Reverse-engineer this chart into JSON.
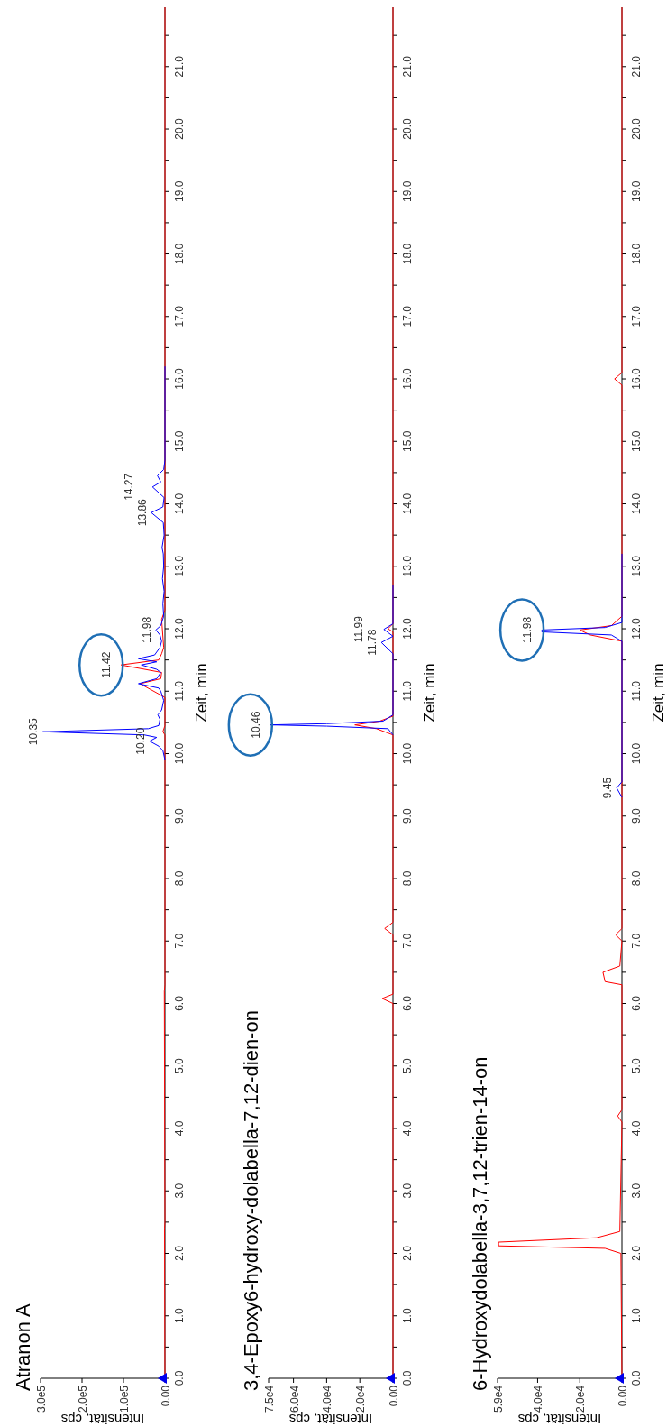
{
  "chart_data": [
    {
      "type": "line",
      "title": "Atranon A",
      "xlabel": "Intensität, cps",
      "ylabel": "Zeit, min",
      "xlim": [
        300000,
        0
      ],
      "ylim": [
        0,
        21.95
      ],
      "yticks": [
        {
          "value": 0,
          "label": "0.0"
        },
        {
          "value": 0.5,
          "label": null
        },
        {
          "value": 1,
          "label": "1.0"
        },
        {
          "value": 1.5,
          "label": null
        },
        {
          "value": 2,
          "label": "2.0"
        },
        {
          "value": 2.5,
          "label": null
        },
        {
          "value": 3,
          "label": "3.0"
        },
        {
          "value": 3.5,
          "label": null
        },
        {
          "value": 4,
          "label": "4.0"
        },
        {
          "value": 4.5,
          "label": null
        },
        {
          "value": 5,
          "label": "5.0"
        },
        {
          "value": 5.5,
          "label": null
        },
        {
          "value": 6,
          "label": "6.0"
        },
        {
          "value": 6.5,
          "label": null
        },
        {
          "value": 7,
          "label": "7.0"
        },
        {
          "value": 7.5,
          "label": null
        },
        {
          "value": 8,
          "label": "8.0"
        },
        {
          "value": 8.5,
          "label": null
        },
        {
          "value": 9,
          "label": "9.0"
        },
        {
          "value": 9.5,
          "label": null
        },
        {
          "value": 10,
          "label": "10.0"
        },
        {
          "value": 10.5,
          "label": null
        },
        {
          "value": 11,
          "label": "11.0"
        },
        {
          "value": 11.5,
          "label": null
        },
        {
          "value": 12,
          "label": "12.0"
        },
        {
          "value": 12.5,
          "label": null
        },
        {
          "value": 13,
          "label": "13.0"
        },
        {
          "value": 13.5,
          "label": null
        },
        {
          "value": 14,
          "label": "14.0"
        },
        {
          "value": 14.5,
          "label": null
        },
        {
          "value": 15,
          "label": "15.0"
        },
        {
          "value": 15.5,
          "label": null
        },
        {
          "value": 16,
          "label": "16.0"
        },
        {
          "value": 16.5,
          "label": null
        },
        {
          "value": 17,
          "label": "17.0"
        },
        {
          "value": 17.5,
          "label": null
        },
        {
          "value": 18,
          "label": "18.0"
        },
        {
          "value": 18.5,
          "label": null
        },
        {
          "value": 19,
          "label": "19.0"
        },
        {
          "value": 19.5,
          "label": null
        },
        {
          "value": 20,
          "label": "20.0"
        },
        {
          "value": 20.5,
          "label": null
        },
        {
          "value": 21,
          "label": "21.0"
        },
        {
          "value": 21.5,
          "label": null
        }
      ],
      "xticks": [
        {
          "value": 300000,
          "label": "3.0e5"
        },
        {
          "value": 200000,
          "label": "2.0e5"
        },
        {
          "value": 100000,
          "label": "1.0e5"
        },
        {
          "value": 0,
          "label": "0.00"
        }
      ],
      "series": [
        {
          "color": "#ff0000",
          "values": [
            0,
            2.4,
            2.5,
            6.2,
            6.3,
            10.3,
            10.35,
            10.45,
            10.9,
            11.12,
            11.2,
            11.3,
            11.42,
            11.5,
            11.6,
            11.7,
            12.15,
            12.3,
            21.95
          ],
          "x": [
            0,
            1000,
            0,
            1500,
            0,
            0,
            5000,
            0,
            0,
            60000,
            10000,
            8000,
            106000,
            15000,
            8000,
            3000,
            8000,
            0,
            0
          ]
        },
        {
          "color": "#0000ff",
          "values": [
            9.9,
            10.05,
            10.12,
            10.2,
            10.26,
            10.3,
            10.35,
            10.4,
            10.45,
            10.55,
            10.62,
            10.7,
            10.85,
            11,
            11.05,
            11.12,
            11.2,
            11.3,
            11.35,
            11.42,
            11.47,
            11.52,
            11.58,
            11.7,
            11.8,
            11.9,
            11.98,
            12.05,
            12.2,
            12.4,
            12.6,
            12.8,
            13,
            13.2,
            13.3,
            13.5,
            13.7,
            13.86,
            13.95,
            14.1,
            14.27,
            14.35,
            14.45,
            14.55,
            14.7,
            16.2
          ],
          "x": [
            0,
            5000,
            15000,
            37000,
            20000,
            50000,
            295000,
            40000,
            15000,
            12000,
            17000,
            8000,
            3000,
            10000,
            15000,
            64000,
            20000,
            10000,
            20000,
            57000,
            20000,
            64000,
            25000,
            12000,
            8000,
            12000,
            22000,
            10000,
            3000,
            5000,
            2000,
            6000,
            3000,
            4000,
            7000,
            2000,
            4000,
            33000,
            5000,
            2000,
            30000,
            10000,
            18000,
            3000,
            0,
            0
          ]
        }
      ],
      "annotations": [
        {
          "text": "11.42",
          "y": 11.42,
          "x": 106000
        },
        {
          "text": "10.35",
          "y": 10.35,
          "x": 295000
        },
        {
          "text": "10.20",
          "y": 10.2,
          "x": 37000
        },
        {
          "text": "11.98",
          "y": 11.98,
          "x": 22000
        },
        {
          "text": "13.86",
          "y": 13.86,
          "x": 33000
        },
        {
          "text": "14.27",
          "y": 14.27,
          "x": 30000
        }
      ]
    },
    {
      "type": "line",
      "title": "3,4-Epoxy6-hydroxy-dolabella-7,12-dien-on",
      "xlabel": "Intensität, cps",
      "ylabel": "Zeit, min",
      "xlim": [
        75000,
        0
      ],
      "ylim": [
        0,
        21.95
      ],
      "yticks": [
        {
          "value": 0,
          "label": "0.0"
        },
        {
          "value": 0.5,
          "label": null
        },
        {
          "value": 1,
          "label": "1.0"
        },
        {
          "value": 1.5,
          "label": null
        },
        {
          "value": 2,
          "label": "2.0"
        },
        {
          "value": 2.5,
          "label": null
        },
        {
          "value": 3,
          "label": "3.0"
        },
        {
          "value": 3.5,
          "label": null
        },
        {
          "value": 4,
          "label": "4.0"
        },
        {
          "value": 4.5,
          "label": null
        },
        {
          "value": 5,
          "label": "5.0"
        },
        {
          "value": 5.5,
          "label": null
        },
        {
          "value": 6,
          "label": "6.0"
        },
        {
          "value": 6.5,
          "label": null
        },
        {
          "value": 7,
          "label": "7.0"
        },
        {
          "value": 7.5,
          "label": null
        },
        {
          "value": 8,
          "label": "8.0"
        },
        {
          "value": 8.5,
          "label": null
        },
        {
          "value": 9,
          "label": "9.0"
        },
        {
          "value": 9.5,
          "label": null
        },
        {
          "value": 10,
          "label": "10.0"
        },
        {
          "value": 10.5,
          "label": null
        },
        {
          "value": 11,
          "label": "11.0"
        },
        {
          "value": 11.5,
          "label": null
        },
        {
          "value": 12,
          "label": "12.0"
        },
        {
          "value": 12.5,
          "label": null
        },
        {
          "value": 13,
          "label": "13.0"
        },
        {
          "value": 13.5,
          "label": null
        },
        {
          "value": 14,
          "label": "14.0"
        },
        {
          "value": 14.5,
          "label": null
        },
        {
          "value": 15,
          "label": "15.0"
        },
        {
          "value": 15.5,
          "label": null
        },
        {
          "value": 16,
          "label": "16.0"
        },
        {
          "value": 16.5,
          "label": null
        },
        {
          "value": 17,
          "label": "17.0"
        },
        {
          "value": 17.5,
          "label": null
        },
        {
          "value": 18,
          "label": "18.0"
        },
        {
          "value": 18.5,
          "label": null
        },
        {
          "value": 19,
          "label": "19.0"
        },
        {
          "value": 19.5,
          "label": null
        },
        {
          "value": 20,
          "label": "20.0"
        },
        {
          "value": 20.5,
          "label": null
        },
        {
          "value": 21,
          "label": "21.0"
        },
        {
          "value": 21.5,
          "label": null
        }
      ],
      "xticks": [
        {
          "value": 75000,
          "label": "7.5e4"
        },
        {
          "value": 60000,
          "label": "6.0e4"
        },
        {
          "value": 40000,
          "label": "4.0e4"
        },
        {
          "value": 20000,
          "label": "2.0e4"
        },
        {
          "value": 0,
          "label": "0.00"
        }
      ],
      "series": [
        {
          "color": "#ff0000",
          "values": [
            0,
            6,
            6.08,
            6.15,
            7.1,
            7.2,
            7.3,
            10.3,
            10.4,
            10.46,
            10.52,
            10.6,
            11.95,
            12,
            12.08,
            21.95
          ],
          "x": [
            0,
            0,
            6500,
            0,
            0,
            5000,
            0,
            0,
            10000,
            23000,
            8000,
            0,
            0,
            3000,
            0,
            0
          ]
        },
        {
          "color": "#0000ff",
          "values": [
            10.3,
            10.4,
            10.44,
            10.46,
            10.48,
            10.52,
            10.62,
            11.6,
            11.78,
            11.88,
            11.99,
            12.08,
            12.7
          ],
          "x": [
            0,
            3000,
            40000,
            74000,
            40000,
            6000,
            0,
            0,
            7000,
            0,
            5500,
            0,
            0
          ]
        }
      ],
      "annotations": [
        {
          "text": "10.46",
          "y": 10.46,
          "x": 74000
        },
        {
          "text": "11.78",
          "y": 11.78,
          "x": 7000
        },
        {
          "text": "11.99",
          "y": 11.99,
          "x": 5500
        }
      ]
    },
    {
      "type": "line",
      "title": "6-Hydroxydolabella-3,7,12-trien-14-on",
      "xlabel": "Intensität, cps",
      "ylabel": "Zeit, min",
      "xlim": [
        59000,
        0
      ],
      "ylim": [
        0,
        21.95
      ],
      "yticks": [
        {
          "value": 0,
          "label": "0.0"
        },
        {
          "value": 0.5,
          "label": null
        },
        {
          "value": 1,
          "label": "1.0"
        },
        {
          "value": 1.5,
          "label": null
        },
        {
          "value": 2,
          "label": "2.0"
        },
        {
          "value": 2.5,
          "label": null
        },
        {
          "value": 3,
          "label": "3.0"
        },
        {
          "value": 3.5,
          "label": null
        },
        {
          "value": 4,
          "label": "4.0"
        },
        {
          "value": 4.5,
          "label": null
        },
        {
          "value": 5,
          "label": "5.0"
        },
        {
          "value": 5.5,
          "label": null
        },
        {
          "value": 6,
          "label": "6.0"
        },
        {
          "value": 6.5,
          "label": null
        },
        {
          "value": 7,
          "label": "7.0"
        },
        {
          "value": 7.5,
          "label": null
        },
        {
          "value": 8,
          "label": "8.0"
        },
        {
          "value": 8.5,
          "label": null
        },
        {
          "value": 9,
          "label": "9.0"
        },
        {
          "value": 9.5,
          "label": null
        },
        {
          "value": 10,
          "label": "10.0"
        },
        {
          "value": 10.5,
          "label": null
        },
        {
          "value": 11,
          "label": "11.0"
        },
        {
          "value": 11.5,
          "label": null
        },
        {
          "value": 12,
          "label": "12.0"
        },
        {
          "value": 12.5,
          "label": null
        },
        {
          "value": 13,
          "label": "13.0"
        },
        {
          "value": 13.5,
          "label": null
        },
        {
          "value": 14,
          "label": "14.0"
        },
        {
          "value": 14.5,
          "label": null
        },
        {
          "value": 15,
          "label": "15.0"
        },
        {
          "value": 15.5,
          "label": null
        },
        {
          "value": 16,
          "label": "16.0"
        },
        {
          "value": 16.5,
          "label": null
        },
        {
          "value": 17,
          "label": "17.0"
        },
        {
          "value": 17.5,
          "label": null
        },
        {
          "value": 18,
          "label": "18.0"
        },
        {
          "value": 18.5,
          "label": null
        },
        {
          "value": 19,
          "label": "19.0"
        },
        {
          "value": 19.5,
          "label": null
        },
        {
          "value": 20,
          "label": "20.0"
        },
        {
          "value": 20.5,
          "label": null
        },
        {
          "value": 21,
          "label": "21.0"
        },
        {
          "value": 21.5,
          "label": null
        }
      ],
      "xticks": [
        {
          "value": 59000,
          "label": "5.9e4"
        },
        {
          "value": 40000,
          "label": "4.0e4"
        },
        {
          "value": 20000,
          "label": "2.0e4"
        },
        {
          "value": 0,
          "label": "0.00"
        }
      ],
      "series": [
        {
          "color": "#ff0000",
          "values": [
            0,
            2,
            2.08,
            2.12,
            2.18,
            2.25,
            2.35,
            4.1,
            4.2,
            4.3,
            6.3,
            6.35,
            6.5,
            6.6,
            7,
            7.1,
            7.2,
            11.8,
            11.9,
            11.98,
            12.05,
            12.2,
            15.9,
            16,
            16.1,
            21.95
          ],
          "x": [
            0,
            500,
            8000,
            58500,
            58500,
            12000,
            1000,
            0,
            2000,
            0,
            0,
            8000,
            9000,
            1000,
            0,
            3000,
            0,
            0,
            15000,
            20000,
            5000,
            0,
            0,
            3500,
            0,
            0
          ]
        },
        {
          "color": "#0000ff",
          "values": [
            9.3,
            9.45,
            9.55,
            11.8,
            11.9,
            11.95,
            11.98,
            12.02,
            12.1,
            13.2
          ],
          "x": [
            0,
            2500,
            0,
            0,
            5000,
            38000,
            38000,
            8000,
            0,
            0
          ]
        }
      ],
      "annotations": [
        {
          "text": "11.98",
          "y": 11.98,
          "x": 38000
        },
        {
          "text": "9.45",
          "y": 9.45,
          "x": 2500
        }
      ]
    }
  ]
}
